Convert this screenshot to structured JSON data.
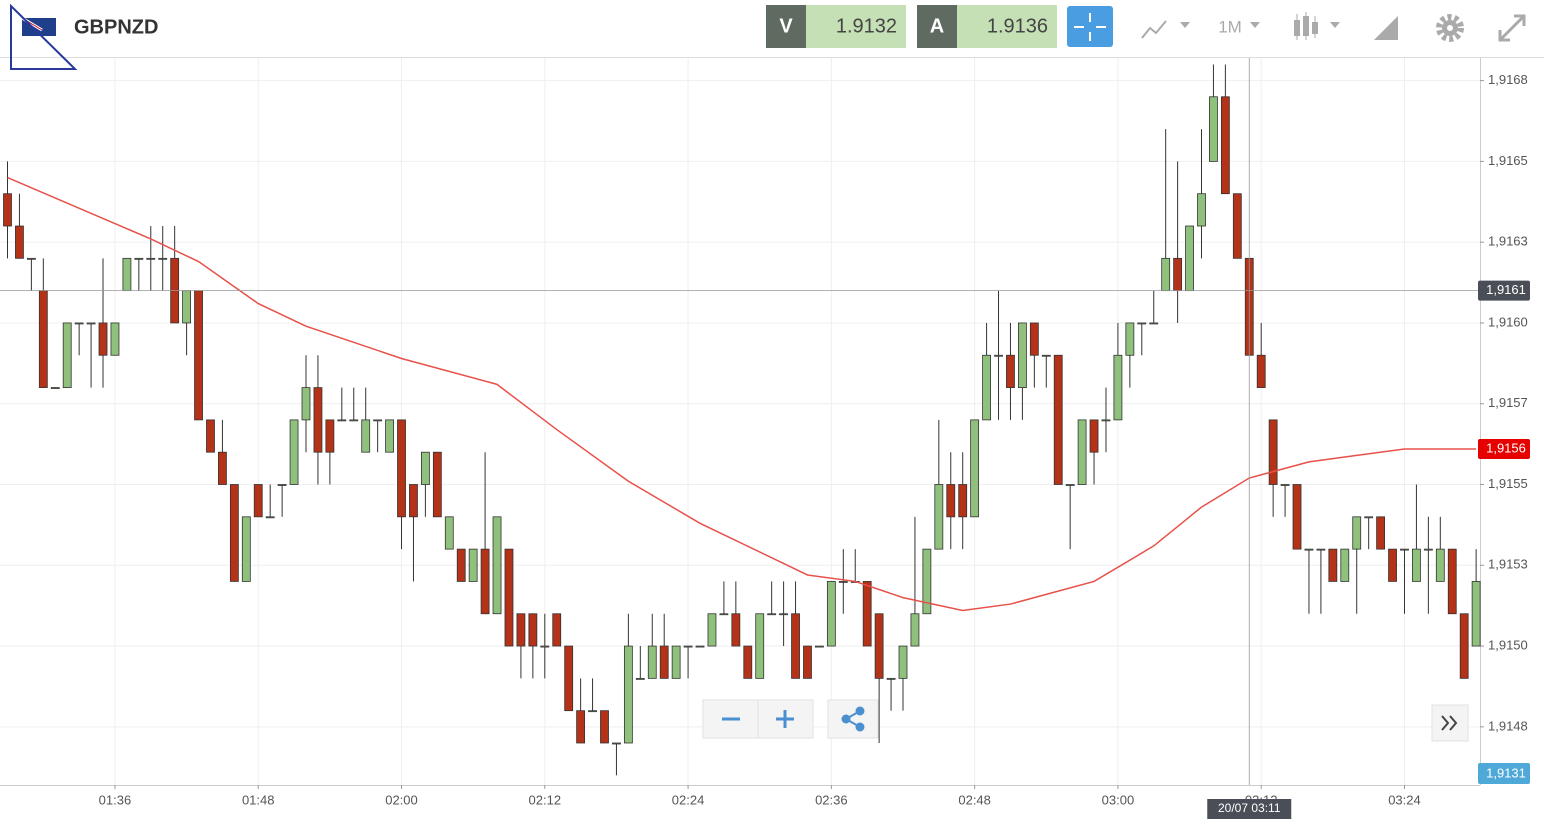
{
  "header": {
    "symbol": "GBPNZD",
    "sell_label": "V",
    "sell_price": "1.9132",
    "buy_label": "A",
    "buy_price": "1.9136",
    "timeframe": "1M"
  },
  "chart_data": {
    "type": "candlestick",
    "x": [
      "01:27",
      "01:28",
      "01:29",
      "01:30",
      "01:31",
      "01:32",
      "01:33",
      "01:34",
      "01:35",
      "01:36",
      "01:37",
      "01:38",
      "01:39",
      "01:40",
      "01:41",
      "01:42",
      "01:43",
      "01:44",
      "01:45",
      "01:46",
      "01:47",
      "01:48",
      "01:49",
      "01:50",
      "01:51",
      "01:52",
      "01:53",
      "01:54",
      "01:55",
      "01:56",
      "01:57",
      "01:58",
      "01:59",
      "02:00",
      "02:01",
      "02:02",
      "02:03",
      "02:04",
      "02:05",
      "02:06",
      "02:07",
      "02:08",
      "02:09",
      "02:10",
      "02:11",
      "02:12",
      "02:13",
      "02:14",
      "02:15",
      "02:16",
      "02:17",
      "02:18",
      "02:19",
      "02:20",
      "02:21",
      "02:22",
      "02:23",
      "02:24",
      "02:25",
      "02:26",
      "02:27",
      "02:28",
      "02:29",
      "02:30",
      "02:31",
      "02:32",
      "02:33",
      "02:34",
      "02:35",
      "02:36",
      "02:37",
      "02:38",
      "02:39",
      "02:40",
      "02:41",
      "02:42",
      "02:43",
      "02:44",
      "02:45",
      "02:46",
      "02:47",
      "02:48",
      "02:49",
      "02:50",
      "02:51",
      "02:52",
      "02:53",
      "02:54",
      "02:55",
      "02:56",
      "02:57",
      "02:58",
      "02:59",
      "03:00",
      "03:01",
      "03:02",
      "03:03",
      "03:04",
      "03:05",
      "03:06",
      "03:07",
      "03:08",
      "03:09",
      "03:10",
      "03:11",
      "03:12",
      "03:13",
      "03:14",
      "03:15",
      "03:16",
      "03:17",
      "03:18",
      "03:19",
      "03:20",
      "03:21",
      "03:22",
      "03:23",
      "03:24",
      "03:25",
      "03:26",
      "03:27",
      "03:28",
      "03:29",
      "03:30"
    ],
    "open": [
      1.9164,
      1.9163,
      1.9162,
      1.9161,
      1.9158,
      1.9158,
      1.916,
      1.916,
      1.916,
      1.9159,
      1.9161,
      1.9162,
      1.9162,
      1.9162,
      1.9162,
      1.916,
      1.9161,
      1.9157,
      1.9156,
      1.9155,
      1.9152,
      1.9155,
      1.9154,
      1.9155,
      1.9155,
      1.9157,
      1.9158,
      1.9157,
      1.9157,
      1.9157,
      1.9156,
      1.9157,
      1.9156,
      1.9157,
      1.9155,
      1.9155,
      1.9156,
      1.9153,
      1.9153,
      1.9152,
      1.9153,
      1.9151,
      1.9153,
      1.9151,
      1.9151,
      1.915,
      1.9151,
      1.915,
      1.9148,
      1.9148,
      1.9148,
      1.9147,
      1.9147,
      1.9149,
      1.9149,
      1.915,
      1.9149,
      1.915,
      1.915,
      1.915,
      1.9151,
      1.9151,
      1.915,
      1.9149,
      1.9151,
      1.9151,
      1.9151,
      1.915,
      1.915,
      1.915,
      1.9152,
      1.9152,
      1.9152,
      1.9151,
      1.9149,
      1.9149,
      1.915,
      1.9151,
      1.9153,
      1.9155,
      1.9155,
      1.9154,
      1.9157,
      1.9159,
      1.9159,
      1.9158,
      1.916,
      1.9159,
      1.9159,
      1.9155,
      1.9155,
      1.9157,
      1.9157,
      1.9157,
      1.9159,
      1.916,
      1.916,
      1.9161,
      1.9162,
      1.9161,
      1.9163,
      1.9165,
      1.9167,
      1.9164,
      1.9162,
      1.9159,
      1.9157,
      1.9155,
      1.9155,
      1.9153,
      1.9153,
      1.9153,
      1.9152,
      1.9153,
      1.9154,
      1.9154,
      1.9153,
      1.9153,
      1.9152,
      1.9153,
      1.9152,
      1.9153,
      1.9151,
      1.915
    ],
    "high": [
      1.9165,
      1.9164,
      1.9162,
      1.9162,
      1.9158,
      1.916,
      1.916,
      1.916,
      1.9162,
      1.916,
      1.9162,
      1.9162,
      1.9163,
      1.9163,
      1.9163,
      1.9161,
      1.9161,
      1.9157,
      1.9157,
      1.9155,
      1.9154,
      1.9155,
      1.9155,
      1.9155,
      1.9157,
      1.9159,
      1.9159,
      1.9157,
      1.9158,
      1.9158,
      1.9158,
      1.9157,
      1.9157,
      1.9157,
      1.9155,
      1.9156,
      1.9156,
      1.9154,
      1.9153,
      1.9153,
      1.9156,
      1.9154,
      1.9153,
      1.9151,
      1.9151,
      1.9151,
      1.9151,
      1.915,
      1.9149,
      1.9149,
      1.9148,
      1.9147,
      1.9151,
      1.915,
      1.9151,
      1.9151,
      1.915,
      1.915,
      1.915,
      1.9151,
      1.9152,
      1.9152,
      1.915,
      1.9151,
      1.9152,
      1.9152,
      1.9152,
      1.915,
      1.915,
      1.9152,
      1.9153,
      1.9153,
      1.9152,
      1.9151,
      1.9149,
      1.915,
      1.9154,
      1.9153,
      1.9157,
      1.9156,
      1.9156,
      1.9157,
      1.916,
      1.9161,
      1.916,
      1.916,
      1.916,
      1.9159,
      1.9159,
      1.9155,
      1.9157,
      1.9157,
      1.9158,
      1.916,
      1.916,
      1.916,
      1.9161,
      1.9166,
      1.9165,
      1.9163,
      1.9166,
      1.9168,
      1.9168,
      1.9164,
      1.9162,
      1.916,
      1.9157,
      1.9155,
      1.9155,
      1.9153,
      1.9153,
      1.9153,
      1.9153,
      1.9154,
      1.9154,
      1.9154,
      1.9153,
      1.9153,
      1.9155,
      1.9154,
      1.9154,
      1.9153,
      1.9151,
      1.9153
    ],
    "low": [
      1.9162,
      1.9162,
      1.9161,
      1.9158,
      1.9158,
      1.9158,
      1.9159,
      1.9158,
      1.9158,
      1.9159,
      1.9161,
      1.9161,
      1.9161,
      1.9161,
      1.916,
      1.9159,
      1.9157,
      1.9156,
      1.9155,
      1.9152,
      1.9152,
      1.9154,
      1.9154,
      1.9154,
      1.9155,
      1.9156,
      1.9155,
      1.9155,
      1.9157,
      1.9157,
      1.9156,
      1.9156,
      1.9156,
      1.9153,
      1.9152,
      1.9154,
      1.9154,
      1.9153,
      1.9152,
      1.9152,
      1.9151,
      1.9151,
      1.915,
      1.9149,
      1.9149,
      1.9149,
      1.915,
      1.9148,
      1.9147,
      1.9148,
      1.9147,
      1.9146,
      1.9147,
      1.9149,
      1.9149,
      1.9149,
      1.9149,
      1.9149,
      1.915,
      1.915,
      1.9151,
      1.915,
      1.9149,
      1.9149,
      1.9151,
      1.915,
      1.9149,
      1.9149,
      1.915,
      1.915,
      1.9151,
      1.9152,
      1.915,
      1.9147,
      1.9148,
      1.9148,
      1.915,
      1.9151,
      1.9153,
      1.9153,
      1.9153,
      1.9154,
      1.9157,
      1.9157,
      1.9157,
      1.9157,
      1.9158,
      1.9158,
      1.9155,
      1.9153,
      1.9155,
      1.9155,
      1.9156,
      1.9157,
      1.9158,
      1.9159,
      1.916,
      1.9161,
      1.916,
      1.9161,
      1.9162,
      1.9165,
      1.9164,
      1.9162,
      1.9159,
      1.9158,
      1.9154,
      1.9154,
      1.9153,
      1.9151,
      1.9151,
      1.9152,
      1.9152,
      1.9151,
      1.9153,
      1.9153,
      1.9152,
      1.9151,
      1.9152,
      1.9151,
      1.9152,
      1.9151,
      1.9149,
      1.915
    ],
    "close": [
      1.9163,
      1.9162,
      1.9162,
      1.9158,
      1.9158,
      1.916,
      1.916,
      1.916,
      1.9159,
      1.916,
      1.9162,
      1.9162,
      1.9162,
      1.9162,
      1.916,
      1.9161,
      1.9157,
      1.9156,
      1.9155,
      1.9152,
      1.9154,
      1.9154,
      1.9154,
      1.9155,
      1.9157,
      1.9158,
      1.9156,
      1.9156,
      1.9157,
      1.9157,
      1.9157,
      1.9157,
      1.9157,
      1.9154,
      1.9154,
      1.9156,
      1.9154,
      1.9154,
      1.9152,
      1.9153,
      1.9151,
      1.9154,
      1.915,
      1.915,
      1.915,
      1.915,
      1.915,
      1.9148,
      1.9147,
      1.9148,
      1.9147,
      1.9147,
      1.915,
      1.9149,
      1.915,
      1.9149,
      1.915,
      1.915,
      1.915,
      1.9151,
      1.9151,
      1.915,
      1.9149,
      1.9151,
      1.9151,
      1.9151,
      1.9149,
      1.9149,
      1.915,
      1.9152,
      1.9152,
      1.9152,
      1.915,
      1.9149,
      1.9149,
      1.915,
      1.9151,
      1.9153,
      1.9155,
      1.9154,
      1.9154,
      1.9157,
      1.9159,
      1.9159,
      1.9158,
      1.916,
      1.9159,
      1.9159,
      1.9155,
      1.9155,
      1.9157,
      1.9156,
      1.9157,
      1.9159,
      1.916,
      1.916,
      1.916,
      1.9162,
      1.9161,
      1.9163,
      1.9164,
      1.9167,
      1.9164,
      1.9162,
      1.9159,
      1.9158,
      1.9155,
      1.9155,
      1.9153,
      1.9153,
      1.9153,
      1.9152,
      1.9153,
      1.9154,
      1.9154,
      1.9153,
      1.9152,
      1.9153,
      1.9153,
      1.9153,
      1.9153,
      1.9151,
      1.9149,
      1.9152
    ],
    "up_color": "#8fc17d",
    "down_color": "#b33218",
    "moving_average": {
      "color": "#e8514a",
      "x": [
        "01:27",
        "01:39",
        "01:43",
        "01:48",
        "01:52",
        "02:00",
        "02:08",
        "02:13",
        "02:19",
        "02:25",
        "02:34",
        "02:38",
        "02:42",
        "02:47",
        "02:51",
        "02:55",
        "02:58",
        "03:03",
        "03:07",
        "03:11",
        "03:16",
        "03:20",
        "03:24",
        "03:30"
      ],
      "values": [
        1.91645,
        1.91626,
        1.91619,
        1.91606,
        1.91599,
        1.91589,
        1.91581,
        1.91567,
        1.91551,
        1.91538,
        1.91522,
        1.9152,
        1.91515,
        1.91511,
        1.91513,
        1.91517,
        1.9152,
        1.91531,
        1.91543,
        1.91552,
        1.91557,
        1.91559,
        1.91561,
        1.91561
      ],
      "last_value": 1.91561,
      "last_label": "1,9156"
    },
    "crosshair": {
      "value": 1.9161,
      "label": "1,9161",
      "time": "03:11",
      "time_label": "20/07 03:11"
    },
    "bid_badge": "1,9131",
    "ylim": [
      1.91457,
      1.91682
    ],
    "yticks": [
      {
        "value": 1.91475,
        "label": "1,9148"
      },
      {
        "value": 1.915,
        "label": "1,9150"
      },
      {
        "value": 1.91525,
        "label": "1,9153"
      },
      {
        "value": 1.9155,
        "label": "1,9155"
      },
      {
        "value": 1.91575,
        "label": "1,9157"
      },
      {
        "value": 1.916,
        "label": "1,9160"
      },
      {
        "value": 1.91625,
        "label": "1,9163"
      },
      {
        "value": 1.9165,
        "label": "1,9165"
      },
      {
        "value": 1.91675,
        "label": "1,9168"
      }
    ],
    "xticks": [
      "01:36",
      "01:48",
      "02:00",
      "02:12",
      "02:24",
      "02:36",
      "02:48",
      "03:00",
      "03:12",
      "03:24"
    ],
    "grid": true
  }
}
